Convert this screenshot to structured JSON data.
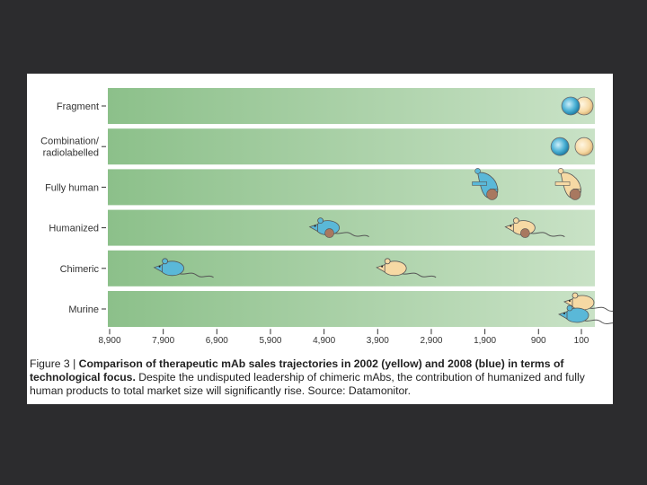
{
  "chart_data": {
    "type": "scatter",
    "categories": [
      "Fragment",
      "Combination/ radiolabelled",
      "Fully human",
      "Humanized",
      "Chimeric",
      "Murine"
    ],
    "x_ticks": [
      "8,900",
      "7,900",
      "6,900",
      "5,900",
      "4,900",
      "3,900",
      "2,900",
      "1,900",
      "900",
      "100"
    ],
    "xlim": [
      8900,
      100
    ],
    "series": [
      {
        "name": "2002 (yellow)",
        "color": "#f6d9a4",
        "values": [
          50,
          50,
          250,
          1150,
          3550,
          50
        ]
      },
      {
        "name": "2008 (blue)",
        "color": "#5ab8d8",
        "values": [
          300,
          500,
          1800,
          4800,
          7700,
          150
        ]
      }
    ],
    "row_markers": [
      "circle",
      "circle",
      "person",
      "mouse-human-head",
      "mouse",
      "mouse"
    ]
  },
  "caption": {
    "fig_label": "Figure 3 | ",
    "bold_text": "Comparison of therapeutic mAb sales trajectories in 2002 (yellow) and 2008 (blue) in terms of technological focus.",
    "body_text": " Despite the undisputed leadership of chimeric mAbs, the contribution of humanized and fully human products to total market size will significantly rise. Source: Datamonitor."
  },
  "colors": {
    "band_dark": "#8cc08a",
    "band_light": "#c9e2c6",
    "yellow": "#f6d9a4",
    "blue": "#5ab8d8",
    "background": "#2c2c2e"
  }
}
